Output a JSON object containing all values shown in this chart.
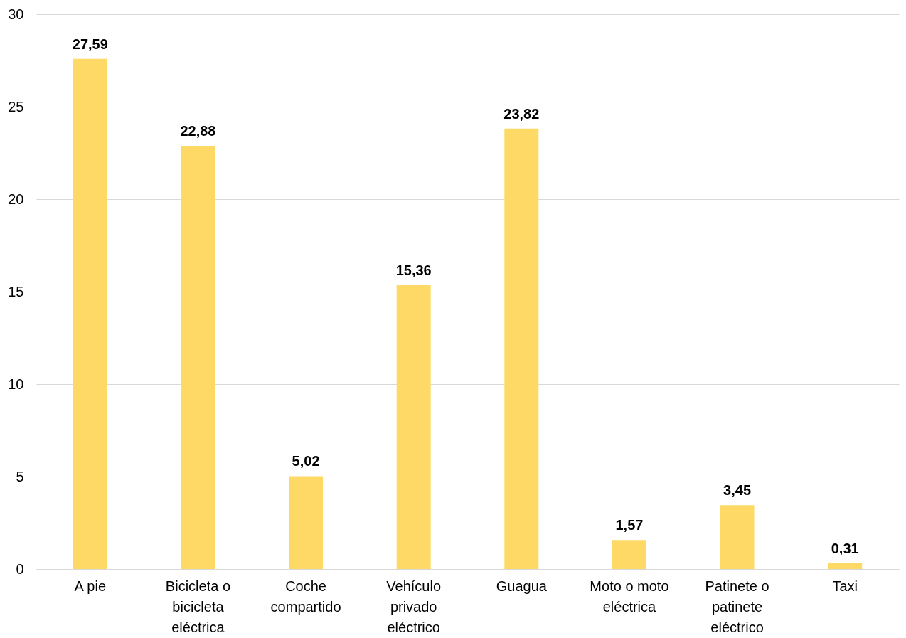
{
  "chart_data": {
    "type": "bar",
    "categories": [
      "A pie",
      "Bicicleta o bicicleta eléctrica",
      "Coche compartido",
      "Vehículo privado eléctrico",
      "Guagua",
      "Moto o moto eléctrica",
      "Patinete o patinete eléctrico",
      "Taxi"
    ],
    "values": [
      27.59,
      22.88,
      5.02,
      15.36,
      23.82,
      1.57,
      3.45,
      0.31
    ],
    "color": "#ffd966",
    "ylim": [
      0,
      30
    ],
    "yticks": [
      0,
      5,
      10,
      15,
      20,
      25,
      30
    ],
    "value_labels": [
      "27,59",
      "22,88",
      "5,02",
      "15,36",
      "23,82",
      "1,57",
      "3,45",
      "0,31"
    ],
    "grid": "y"
  }
}
